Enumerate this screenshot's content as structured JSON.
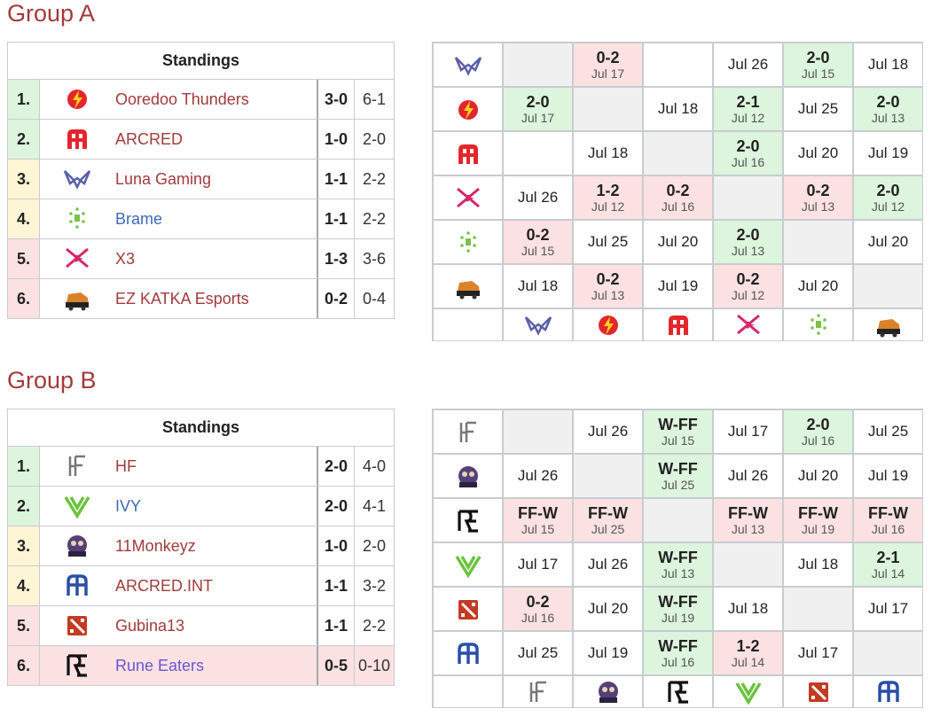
{
  "groups": [
    {
      "title": "Group A",
      "standings": {
        "header": "Standings",
        "rows": [
          {
            "rank": "1.",
            "team": "Ooredoo Thunders",
            "series": "3-0",
            "games": "6-1",
            "rank_color": "#ddf4dd",
            "color": "#a13b3b"
          },
          {
            "rank": "2.",
            "team": "ARCRED",
            "series": "1-0",
            "games": "2-0",
            "rank_color": "#ddf4dd",
            "color": "#a13b3b"
          },
          {
            "rank": "3.",
            "team": "Luna Gaming",
            "series": "1-1",
            "games": "2-2",
            "rank_color": "#fdf5d4",
            "color": "#a13b3b"
          },
          {
            "rank": "4.",
            "team": "Brame",
            "series": "1-1",
            "games": "2-2",
            "rank_color": "#fdf5d4",
            "color": "#3d6bb8"
          },
          {
            "rank": "5.",
            "team": "X3",
            "series": "1-3",
            "games": "3-6",
            "rank_color": "#fbe1e1",
            "color": "#a13b3b"
          },
          {
            "rank": "6.",
            "team": "EZ KATKA Esports",
            "series": "0-2",
            "games": "0-4",
            "rank_color": "#fbe1e1",
            "color": "#a13b3b"
          }
        ]
      },
      "matrix": [
        [
          null,
          {
            "score": "0-2",
            "date": "Jul 17"
          },
          null,
          {
            "date": "Jul 26"
          },
          {
            "score": "2-0",
            "date": "Jul 15"
          },
          {
            "date": "Jul 18"
          }
        ],
        [
          {
            "score": "2-0",
            "date": "Jul 17"
          },
          null,
          {
            "date": "Jul 18"
          },
          {
            "score": "2-1",
            "date": "Jul 12"
          },
          {
            "date": "Jul 25"
          },
          {
            "score": "2-0",
            "date": "Jul 13"
          }
        ],
        [
          null,
          {
            "date": "Jul 18"
          },
          null,
          {
            "score": "2-0",
            "date": "Jul 16"
          },
          {
            "date": "Jul 20"
          },
          {
            "date": "Jul 19"
          }
        ],
        [
          {
            "date": "Jul 26"
          },
          {
            "score": "1-2",
            "date": "Jul 12"
          },
          {
            "score": "0-2",
            "date": "Jul 16"
          },
          null,
          {
            "score": "0-2",
            "date": "Jul 13"
          },
          {
            "score": "2-0",
            "date": "Jul 12"
          }
        ],
        [
          {
            "score": "0-2",
            "date": "Jul 15"
          },
          {
            "date": "Jul 25"
          },
          {
            "date": "Jul 20"
          },
          {
            "score": "2-0",
            "date": "Jul 13"
          },
          null,
          {
            "date": "Jul 20"
          }
        ],
        [
          {
            "date": "Jul 18"
          },
          {
            "score": "0-2",
            "date": "Jul 13"
          },
          {
            "date": "Jul 19"
          },
          {
            "score": "0-2",
            "date": "Jul 12"
          },
          {
            "date": "Jul 20"
          },
          null
        ]
      ]
    },
    {
      "title": "Group B",
      "standings": {
        "header": "Standings",
        "rows": [
          {
            "rank": "1.",
            "team": "HF",
            "series": "2-0",
            "games": "4-0",
            "rank_color": "#ddf4dd",
            "color": "#a13b3b"
          },
          {
            "rank": "2.",
            "team": "IVY",
            "series": "2-0",
            "games": "4-1",
            "rank_color": "#ddf4dd",
            "color": "#3d6bb8"
          },
          {
            "rank": "3.",
            "team": "11Monkeyz",
            "series": "1-0",
            "games": "2-0",
            "rank_color": "#fdf5d4",
            "color": "#a13b3b"
          },
          {
            "rank": "4.",
            "team": "ARCRED.INT",
            "series": "1-1",
            "games": "3-2",
            "rank_color": "#fdf5d4",
            "color": "#a13b3b"
          },
          {
            "rank": "5.",
            "team": "Gubina13",
            "series": "1-1",
            "games": "2-2",
            "rank_color": "#fbe1e1",
            "color": "#a13b3b"
          },
          {
            "rank": "6.",
            "team": "Rune Eaters",
            "series": "0-5",
            "games": "0-10",
            "rank_color": "#fbe1e1",
            "color": "#6a55d6",
            "row_color": "#fbe1e1"
          }
        ]
      },
      "matrix": [
        [
          null,
          {
            "date": "Jul 26"
          },
          {
            "score": "W-FF",
            "date": "Jul 15"
          },
          {
            "date": "Jul 17"
          },
          {
            "score": "2-0",
            "date": "Jul 16"
          },
          {
            "date": "Jul 25"
          }
        ],
        [
          {
            "date": "Jul 26"
          },
          null,
          {
            "score": "W-FF",
            "date": "Jul 25"
          },
          {
            "date": "Jul 26"
          },
          {
            "date": "Jul 20"
          },
          {
            "date": "Jul 19"
          }
        ],
        [
          {
            "score": "FF-W",
            "date": "Jul 15"
          },
          {
            "score": "FF-W",
            "date": "Jul 25"
          },
          null,
          {
            "score": "FF-W",
            "date": "Jul 13"
          },
          {
            "score": "FF-W",
            "date": "Jul 19"
          },
          {
            "score": "FF-W",
            "date": "Jul 16"
          }
        ],
        [
          {
            "date": "Jul 17"
          },
          {
            "date": "Jul 26"
          },
          {
            "score": "W-FF",
            "date": "Jul 13"
          },
          null,
          {
            "date": "Jul 18"
          },
          {
            "score": "2-1",
            "date": "Jul 14"
          }
        ],
        [
          {
            "score": "0-2",
            "date": "Jul 16"
          },
          {
            "date": "Jul 20"
          },
          {
            "score": "W-FF",
            "date": "Jul 19"
          },
          {
            "date": "Jul 18"
          },
          null,
          {
            "date": "Jul 17"
          }
        ],
        [
          {
            "date": "Jul 25"
          },
          {
            "date": "Jul 19"
          },
          {
            "score": "W-FF",
            "date": "Jul 16"
          },
          {
            "score": "1-2",
            "date": "Jul 14"
          },
          {
            "date": "Jul 17"
          },
          null
        ]
      ]
    }
  ]
}
